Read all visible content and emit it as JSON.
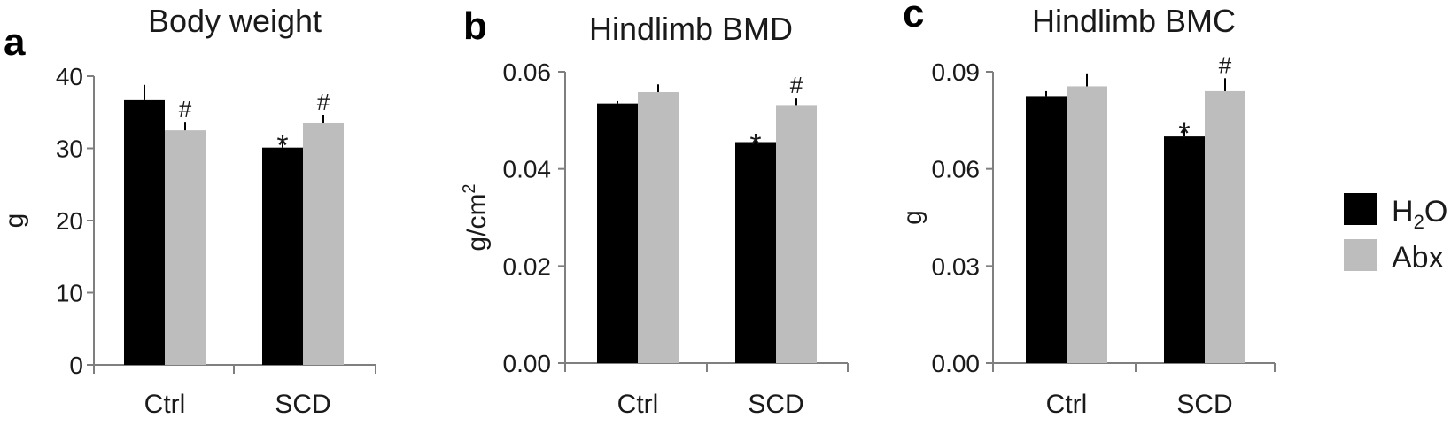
{
  "legend": {
    "items": [
      {
        "label": "H",
        "sub": "2",
        "tail": "O",
        "color": "#000000"
      },
      {
        "label": "Abx",
        "sub": "",
        "tail": "",
        "color": "#bdbdbd"
      }
    ]
  },
  "chart_data": [
    {
      "type": "bar",
      "letter": "a",
      "title": "Body weight",
      "xlabel": "",
      "ylabel": "g",
      "ylabel_sup": "",
      "ylim": [
        0,
        40
      ],
      "yticks": [
        0,
        10,
        20,
        30,
        40
      ],
      "ytick_labels": [
        "0",
        "10",
        "20",
        "30",
        "40"
      ],
      "categories": [
        "Ctrl",
        "SCD"
      ],
      "series": [
        {
          "name": "H2O",
          "color": "#000000",
          "values": [
            36.7,
            30.1
          ],
          "errors": [
            2.1,
            1.1
          ],
          "annotations": [
            "",
            "*"
          ]
        },
        {
          "name": "Abx",
          "color": "#bdbdbd",
          "values": [
            32.5,
            33.5
          ],
          "errors": [
            1.1,
            1.1
          ],
          "annotations": [
            "#",
            "#"
          ]
        }
      ]
    },
    {
      "type": "bar",
      "letter": "b",
      "title": "Hindlimb BMD",
      "xlabel": "",
      "ylabel": "g/cm",
      "ylabel_sup": "2",
      "ylim": [
        0,
        0.06
      ],
      "yticks": [
        0,
        0.02,
        0.04,
        0.06
      ],
      "ytick_labels": [
        "0.00",
        "0.02",
        "0.04",
        "0.06"
      ],
      "categories": [
        "Ctrl",
        "SCD"
      ],
      "series": [
        {
          "name": "H2O",
          "color": "#000000",
          "values": [
            0.0535,
            0.0455
          ],
          "errors": [
            0.0005,
            0.0007
          ],
          "annotations": [
            "",
            "*"
          ]
        },
        {
          "name": "Abx",
          "color": "#bdbdbd",
          "values": [
            0.0558,
            0.053
          ],
          "errors": [
            0.0016,
            0.0015
          ],
          "annotations": [
            "",
            "#"
          ]
        }
      ]
    },
    {
      "type": "bar",
      "letter": "c",
      "title": "Hindlimb BMC",
      "xlabel": "",
      "ylabel": "g",
      "ylabel_sup": "",
      "ylim": [
        0,
        0.09
      ],
      "yticks": [
        0,
        0.03,
        0.06,
        0.09
      ],
      "ytick_labels": [
        "0.00",
        "0.03",
        "0.06",
        "0.09"
      ],
      "categories": [
        "Ctrl",
        "SCD"
      ],
      "series": [
        {
          "name": "H2O",
          "color": "#000000",
          "values": [
            0.0825,
            0.07
          ],
          "errors": [
            0.0015,
            0.0027
          ],
          "annotations": [
            "",
            "*"
          ]
        },
        {
          "name": "Abx",
          "color": "#bdbdbd",
          "values": [
            0.0855,
            0.084
          ],
          "errors": [
            0.004,
            0.004
          ],
          "annotations": [
            "",
            "#"
          ]
        }
      ]
    }
  ]
}
